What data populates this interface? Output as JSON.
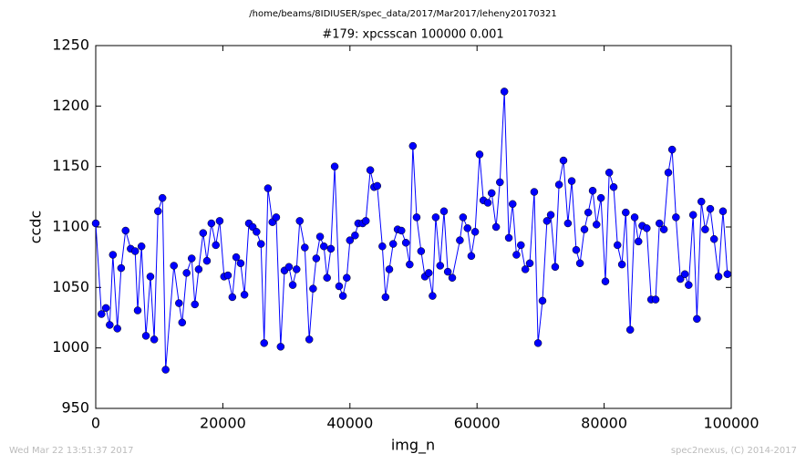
{
  "chart_data": {
    "type": "line",
    "suptitle": "/home/beams/8IDIUSER/spec_data/2017/Mar2017/leheny20170321",
    "title": "#179: xpcsscan 100000 0.001",
    "x_label": "img_n",
    "y_label": "ccdc",
    "footer_left": "Wed Mar 22 13:51:37 2017",
    "footer_right": "spec2nexus, (C) 2014-2017",
    "xlim": [
      0,
      100000
    ],
    "ylim": [
      950,
      1250
    ],
    "xticks": [
      0,
      20000,
      40000,
      60000,
      80000,
      100000
    ],
    "yticks": [
      950,
      1000,
      1050,
      1100,
      1150,
      1200,
      1250
    ],
    "grid": false,
    "x": [
      0,
      900,
      1600,
      2200,
      2700,
      3400,
      4000,
      4700,
      5500,
      6200,
      6600,
      7200,
      7900,
      8600,
      9200,
      9800,
      10500,
      11000,
      12300,
      13100,
      13600,
      14300,
      15100,
      15600,
      16200,
      16900,
      17500,
      18200,
      18900,
      19500,
      20200,
      20800,
      21500,
      22100,
      22800,
      23400,
      24100,
      24700,
      25300,
      26000,
      26500,
      27100,
      27800,
      28400,
      29100,
      29700,
      30400,
      31000,
      31600,
      32100,
      32900,
      33600,
      34200,
      34700,
      35300,
      35900,
      36400,
      37000,
      37600,
      38300,
      38900,
      39500,
      40000,
      40800,
      41300,
      42000,
      42500,
      43200,
      43800,
      44300,
      45100,
      45600,
      46200,
      46800,
      47500,
      48100,
      48800,
      49400,
      49900,
      50500,
      51200,
      51800,
      52400,
      53000,
      53500,
      54200,
      54800,
      55400,
      56100,
      57300,
      57800,
      58500,
      59100,
      59700,
      60400,
      61000,
      61700,
      62300,
      63000,
      63600,
      64300,
      65000,
      65600,
      66200,
      66900,
      67600,
      68300,
      69000,
      69600,
      70300,
      71000,
      71600,
      72300,
      72900,
      73600,
      74300,
      74900,
      75600,
      76200,
      76900,
      77500,
      78200,
      78800,
      79500,
      80200,
      80800,
      81500,
      82100,
      82800,
      83400,
      84100,
      84800,
      85400,
      86000,
      86700,
      87400,
      88100,
      88700,
      89400,
      90100,
      90700,
      91300,
      92000,
      92700,
      93300,
      94000,
      94600,
      95300,
      95900,
      96700,
      97300,
      98000,
      98700,
      99400
    ],
    "series": [
      {
        "name": "ccdc",
        "color": "#0000ff",
        "values": [
          1103,
          1028,
          1033,
          1019,
          1077,
          1016,
          1066,
          1097,
          1082,
          1080,
          1031,
          1084,
          1010,
          1059,
          1007,
          1113,
          1124,
          982,
          1068,
          1037,
          1021,
          1062,
          1074,
          1036,
          1065,
          1095,
          1072,
          1103,
          1085,
          1105,
          1059,
          1060,
          1042,
          1075,
          1070,
          1044,
          1103,
          1100,
          1096,
          1086,
          1004,
          1132,
          1104,
          1108,
          1001,
          1064,
          1067,
          1052,
          1065,
          1105,
          1083,
          1007,
          1049,
          1074,
          1092,
          1084,
          1058,
          1082,
          1150,
          1051,
          1043,
          1058,
          1089,
          1093,
          1103,
          1103,
          1105,
          1147,
          1133,
          1134,
          1084,
          1042,
          1065,
          1086,
          1098,
          1097,
          1087,
          1069,
          1167,
          1108,
          1080,
          1059,
          1062,
          1043,
          1108,
          1068,
          1113,
          1063,
          1058,
          1089,
          1108,
          1099,
          1076,
          1096,
          1160,
          1122,
          1120,
          1128,
          1100,
          1137,
          1212,
          1091,
          1119,
          1077,
          1085,
          1065,
          1070,
          1129,
          1004,
          1039,
          1105,
          1110,
          1067,
          1135,
          1155,
          1103,
          1138,
          1081,
          1070,
          1098,
          1112,
          1130,
          1102,
          1124,
          1055,
          1145,
          1133,
          1085,
          1069,
          1112,
          1015,
          1108,
          1088,
          1101,
          1099,
          1040,
          1040,
          1103,
          1098,
          1145,
          1164,
          1108,
          1057,
          1061,
          1052,
          1110,
          1024,
          1121,
          1098,
          1115,
          1090,
          1059,
          1113,
          1061
        ]
      }
    ]
  }
}
